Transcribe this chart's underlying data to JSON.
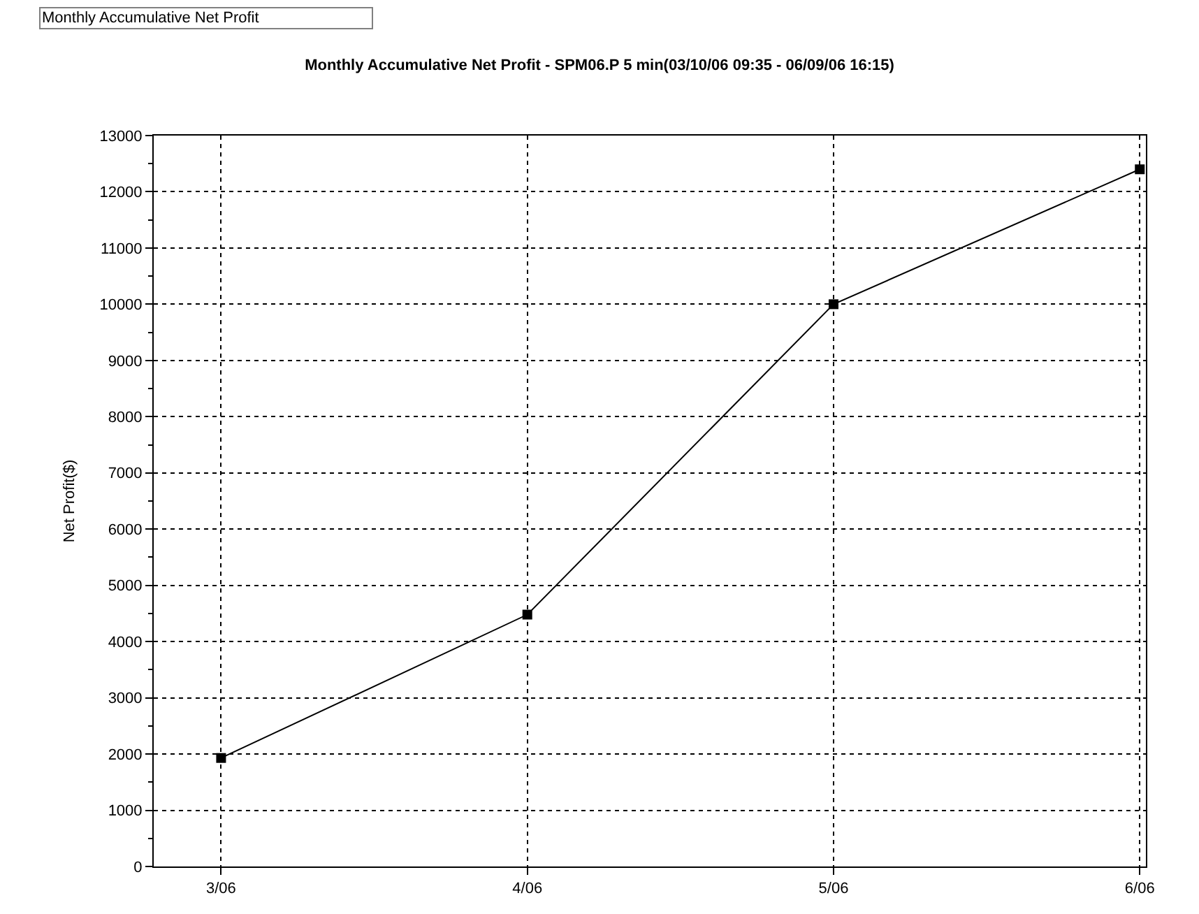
{
  "chart_data": {
    "type": "line",
    "title": "Monthly Accumulative Net Profit - SPM06.P 5 min(03/10/06 09:35 - 06/09/06 16:15)",
    "ylabel": "Net Profit($)",
    "annotations": [
      "Monthly Accumulative Net Profit"
    ],
    "categories": [
      "3/06",
      "4/06",
      "5/06",
      "6/06"
    ],
    "series": [
      {
        "color": "#000000",
        "values": [
          1930,
          4480,
          10000,
          12400
        ]
      }
    ],
    "ylim": [
      0,
      13000
    ],
    "yticks": [
      0,
      1000,
      2000,
      3000,
      4000,
      5000,
      6000,
      7000,
      8000,
      9000,
      10000,
      11000,
      12000,
      13000
    ],
    "grid": true,
    "marker": "square",
    "line_style": "solid"
  }
}
